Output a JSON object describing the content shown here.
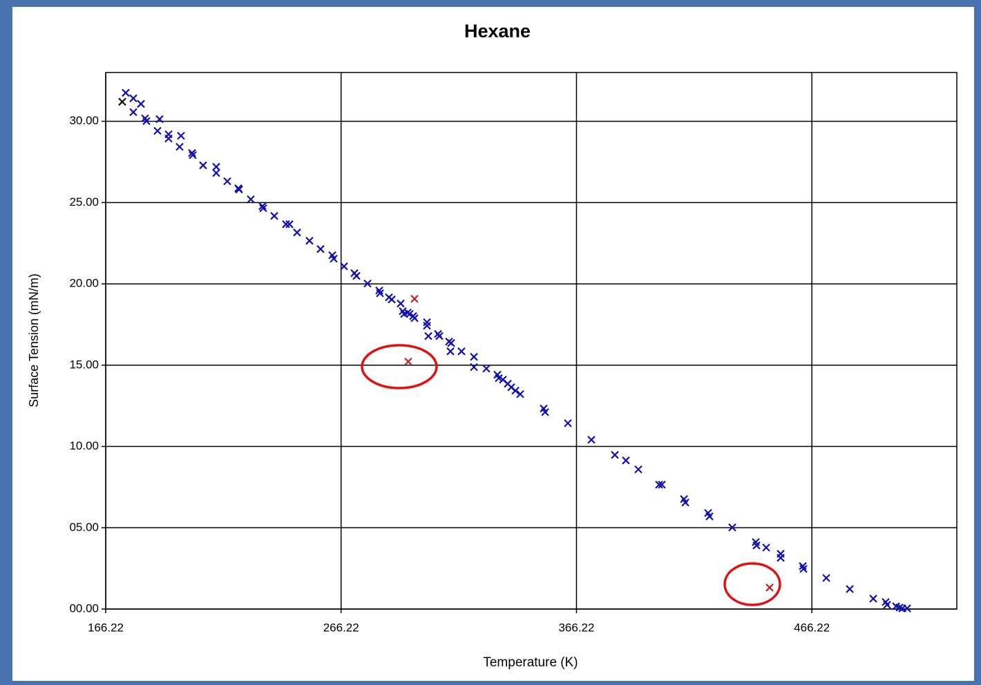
{
  "chart_data": {
    "type": "scatter",
    "title": "Hexane",
    "x_label": "Temperature (K)",
    "y_label": "Surface Tension (mN/m)",
    "xlim": [
      166.22,
      527.8
    ],
    "ylim": [
      0,
      33
    ],
    "xticks": [
      166.22,
      266.22,
      366.22,
      466.22
    ],
    "yticks": [
      {
        "value": 0,
        "label": "00.00"
      },
      {
        "value": 5,
        "label": "05.00"
      },
      {
        "value": 10,
        "label": "10.00"
      },
      {
        "value": 15,
        "label": "15.00"
      },
      {
        "value": 20,
        "label": "20.00"
      },
      {
        "value": 25,
        "label": "25.00"
      },
      {
        "value": 30,
        "label": "30.00"
      }
    ],
    "grid": true,
    "series": [
      {
        "color": "#1010b0",
        "x": [
          174.73,
          177.96,
          177.96,
          181.19,
          182.95,
          183.54,
          188.23,
          189.11,
          192.93,
          192.93,
          198.21,
          197.62,
          202.91,
          203.2,
          207.6,
          213.18,
          213.18,
          217.88,
          222.57,
          222.87,
          227.86,
          232.84,
          233.14,
          237.83,
          242.82,
          244.29,
          247.52,
          252.8,
          257.5,
          262.49,
          263.08,
          267.48,
          271.88,
          272.76,
          277.46,
          282.45,
          282.74,
          286.56,
          287.73,
          291.54,
          292.43,
          293.01,
          294.48,
          295.36,
          296.83,
          297.41,
          302.7,
          302.7,
          303.28,
          307.39,
          307.98,
          312.09,
          312.97,
          312.68,
          317.37,
          322.66,
          322.66,
          327.94,
          332.63,
          333.22,
          334.98,
          337.04,
          338.5,
          340.27,
          342.32,
          352.3,
          352.89,
          362.57,
          372.55,
          382.53,
          387.23,
          392.51,
          401.31,
          402.49,
          411.88,
          412.47,
          422.15,
          422.74,
          432.42,
          442.4,
          442.7,
          446.81,
          452.97,
          452.97,
          462.36,
          462.66,
          472.34,
          482.32,
          492.3,
          497.58,
          498.17,
          501.98,
          503.45,
          504.63,
          506.68
        ],
        "values": [
          31.75,
          31.41,
          30.56,
          31.07,
          30.18,
          30.01,
          29.41,
          30.13,
          29.2,
          28.94,
          29.11,
          28.43,
          28.05,
          27.92,
          27.29,
          27.2,
          26.82,
          26.31,
          25.88,
          25.8,
          25.2,
          24.78,
          24.65,
          24.18,
          23.67,
          23.67,
          23.16,
          22.65,
          22.14,
          21.76,
          21.55,
          21.08,
          20.66,
          20.49,
          20.02,
          19.59,
          19.42,
          19.17,
          19.04,
          18.79,
          18.32,
          18.15,
          18.23,
          18.15,
          18.02,
          17.89,
          17.64,
          17.43,
          16.79,
          16.92,
          16.79,
          16.45,
          16.36,
          15.85,
          15.85,
          15.51,
          14.88,
          14.79,
          14.41,
          14.2,
          14.11,
          13.86,
          13.64,
          13.43,
          13.22,
          12.33,
          12.11,
          11.43,
          10.41,
          9.48,
          9.14,
          8.59,
          7.65,
          7.65,
          6.76,
          6.55,
          5.91,
          5.7,
          5.02,
          4.12,
          3.91,
          3.78,
          3.4,
          3.15,
          2.64,
          2.47,
          1.91,
          1.23,
          0.64,
          0.43,
          0.26,
          0.17,
          0.09,
          0.04,
          0.04
        ]
      },
      {
        "color": "#000000",
        "x": [
          173.26
        ],
        "values": [
          31.2
        ]
      },
      {
        "color": "#c02020",
        "x": [
          297.41,
          294.77,
          448.27
        ],
        "values": [
          19.08,
          15.22,
          1.32
        ]
      }
    ]
  }
}
